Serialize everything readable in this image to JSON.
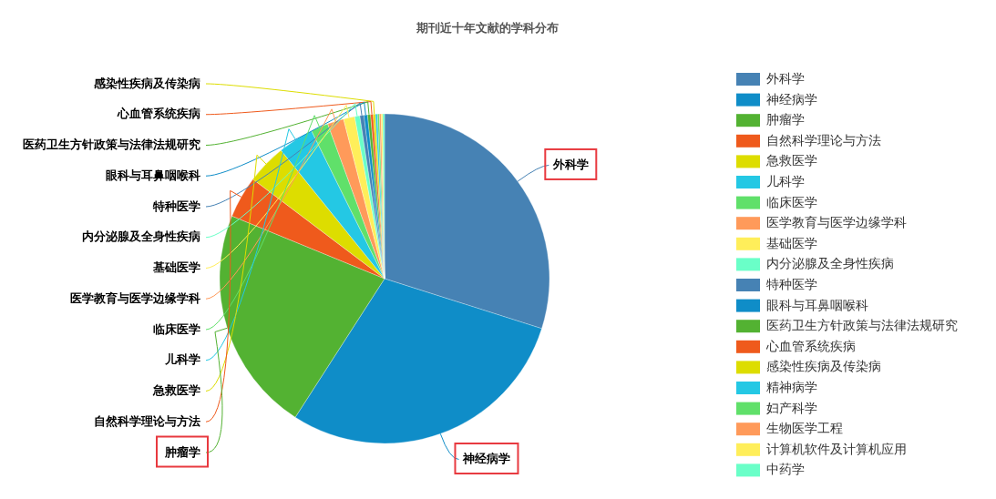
{
  "chart_data": {
    "type": "pie",
    "title": "期刊近十年文献的学科分布",
    "legend": "right",
    "categories": [
      "外科学",
      "神经病学",
      "肿瘤学",
      "自然科学理论与方法",
      "急救医学",
      "儿科学",
      "临床医学",
      "医学教育与医学边缘学科",
      "基础医学",
      "内分泌腺及全身性疾病",
      "特种医学",
      "眼科与耳鼻咽喉科",
      "医药卫生方针政策与法律法规研究",
      "心血管系统疾病",
      "感染性疾病及传染病",
      "精神病学",
      "妇产科学",
      "生物医学工程",
      "计算机软件及计算机应用",
      "中药学"
    ],
    "values": [
      29.9,
      29.2,
      22.1,
      4.1,
      3.9,
      3.5,
      1.7,
      1.6,
      1.1,
      0.5,
      0.4,
      0.35,
      0.3,
      0.25,
      0.22,
      0.2,
      0.18,
      0.17,
      0.15,
      0.18
    ],
    "colors": [
      "#4682b4",
      "#0f8dc8",
      "#53b232",
      "#ef5a1c",
      "#dddd00",
      "#24c8e4",
      "#60e06a",
      "#ff9a5a",
      "#ffee5a",
      "#6affc8",
      "#4682b4",
      "#0f8dc8",
      "#53b232",
      "#ef5a1c",
      "#dddd00",
      "#24c8e4",
      "#60e06a",
      "#ff9a5a",
      "#ffee5a",
      "#6affc8"
    ]
  }
}
